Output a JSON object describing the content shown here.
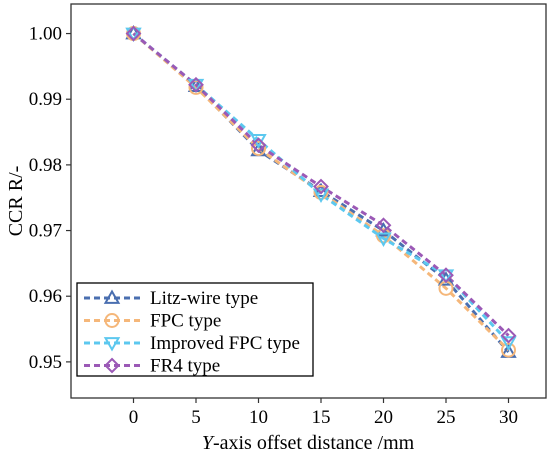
{
  "chart_data": {
    "type": "line",
    "x": [
      0,
      5,
      10,
      15,
      20,
      25,
      30
    ],
    "xlim": [
      -5,
      33
    ],
    "ylim": [
      0.9445,
      1.0045
    ],
    "xticks": [
      "0",
      "5",
      "10",
      "15",
      "20",
      "25",
      "30"
    ],
    "yticks": [
      "0.95",
      "0.96",
      "0.97",
      "0.98",
      "0.99",
      "1.00"
    ],
    "xlabel_italic": "Y",
    "xlabel_rest": "-axis offset distance /mm",
    "ylabel": "CCR R/-",
    "grid": false,
    "legend_position": "bottom-left",
    "series": [
      {
        "name": "Litz-wire type",
        "marker": "triangle-up",
        "color": "#4a6fb0",
        "values": [
          1.0,
          0.992,
          0.9822,
          0.976,
          0.97,
          0.9625,
          0.9515
        ]
      },
      {
        "name": "FPC type",
        "marker": "circle",
        "color": "#f5b77a",
        "values": [
          1.0,
          0.9918,
          0.9825,
          0.9758,
          0.9692,
          0.9612,
          0.9518
        ]
      },
      {
        "name": "Improved FPC type",
        "marker": "triangle-down",
        "color": "#5cc8ef",
        "values": [
          1.0,
          0.9922,
          0.9838,
          0.9755,
          0.9688,
          0.9632,
          0.953
        ]
      },
      {
        "name": "FR4 type",
        "marker": "diamond",
        "color": "#9b59b6",
        "values": [
          1.0,
          0.9922,
          0.983,
          0.9767,
          0.9708,
          0.9632,
          0.954
        ]
      }
    ]
  }
}
